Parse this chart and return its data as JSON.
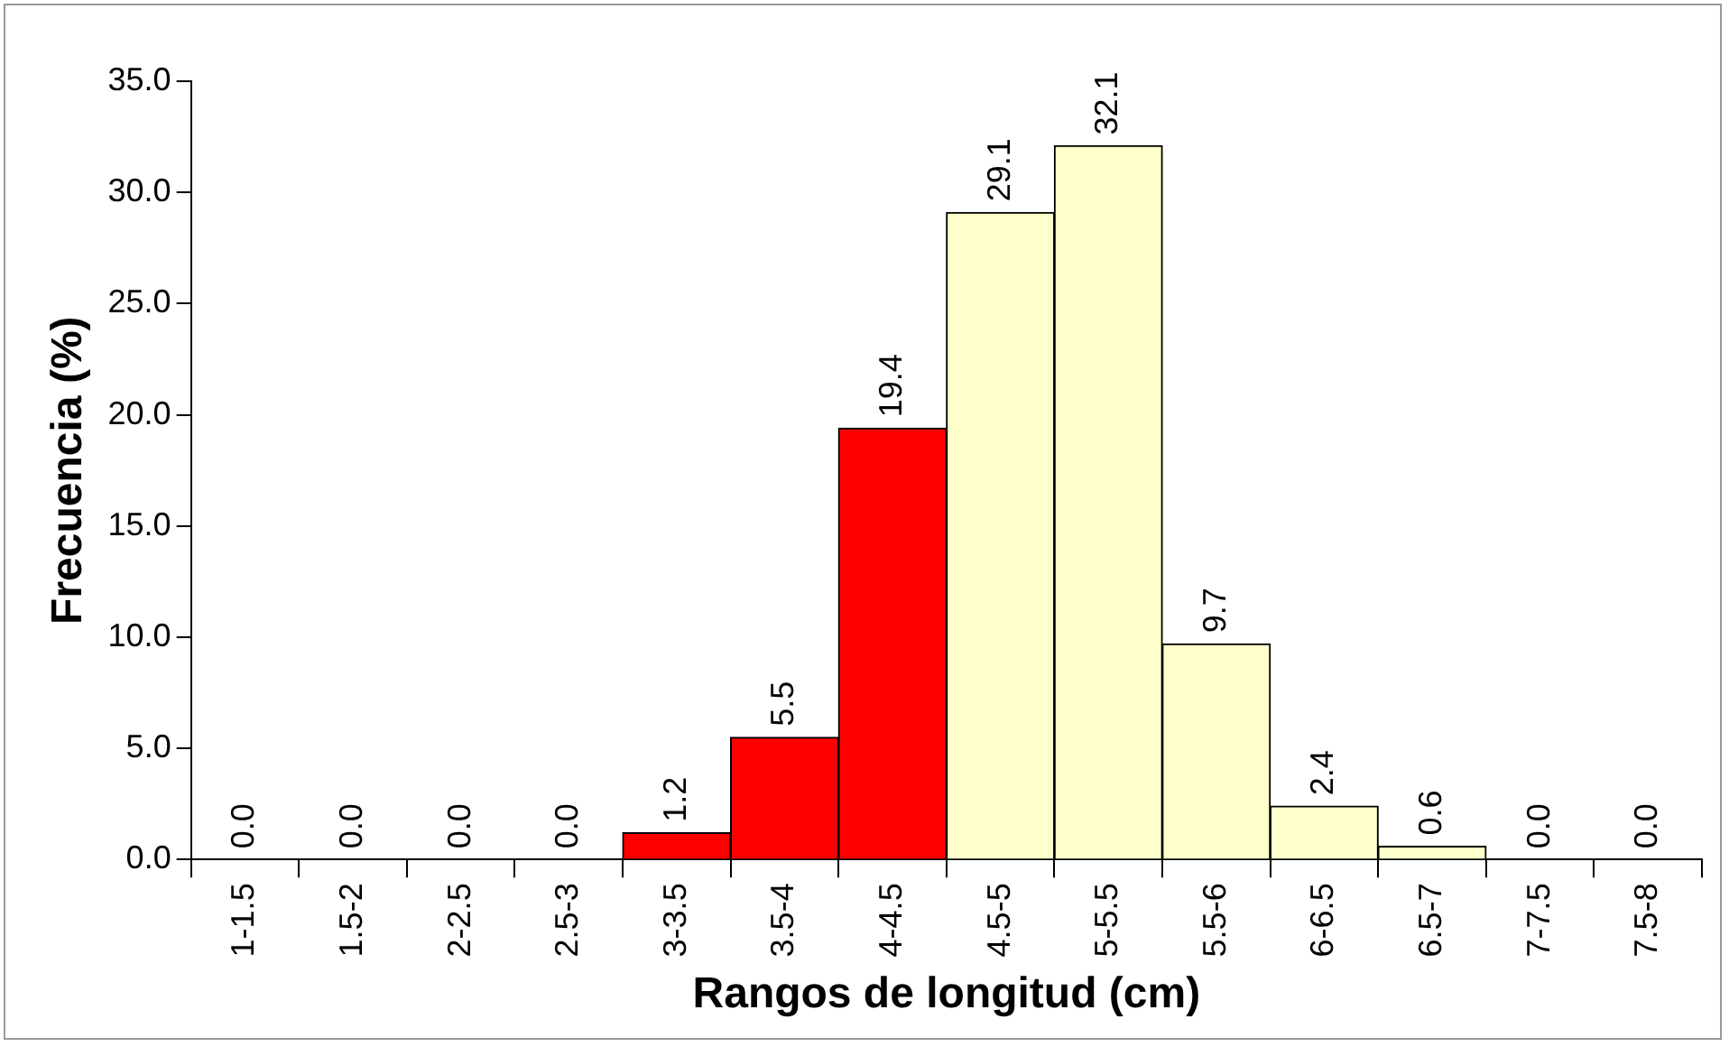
{
  "chart_data": {
    "type": "bar",
    "xlabel": "Rangos de longitud (cm)",
    "ylabel": "Frecuencia (%)",
    "categories": [
      "1-1.5",
      "1.5-2",
      "2-2.5",
      "2.5-3",
      "3-3.5",
      "3.5-4",
      "4-4.5",
      "4.5-5",
      "5-5.5",
      "5.5-6",
      "6-6.5",
      "6.5-7",
      "7-7.5",
      "7.5-8"
    ],
    "values": [
      0,
      0,
      0,
      0,
      1.2,
      5.5,
      19.4,
      29.1,
      32.1,
      9.7,
      2.4,
      0.6,
      0,
      0
    ],
    "value_labels": [
      "0.0",
      "0.0",
      "0.0",
      "0.0",
      "1.2",
      "5.5",
      "19.4",
      "29.1",
      "32.1",
      "9.7",
      "2.4",
      "0.6",
      "0.0",
      "0.0"
    ],
    "colors": [
      "#ffffcc",
      "#ffffcc",
      "#ffffcc",
      "#ffffcc",
      "#ff0000",
      "#ff0000",
      "#ff0000",
      "#ffffcc",
      "#ffffcc",
      "#ffffcc",
      "#ffffcc",
      "#ffffcc",
      "#ffffcc",
      "#ffffcc"
    ],
    "ylim": [
      0,
      35
    ],
    "yticks": [
      {
        "value": 0,
        "label": "0.0"
      },
      {
        "value": 5,
        "label": "5.0"
      },
      {
        "value": 10,
        "label": "10.0"
      },
      {
        "value": 15,
        "label": "15.0"
      },
      {
        "value": 20,
        "label": "20.0"
      },
      {
        "value": 25,
        "label": "25.0"
      },
      {
        "value": 30,
        "label": "30.0"
      },
      {
        "value": 35,
        "label": "35.0"
      }
    ]
  }
}
